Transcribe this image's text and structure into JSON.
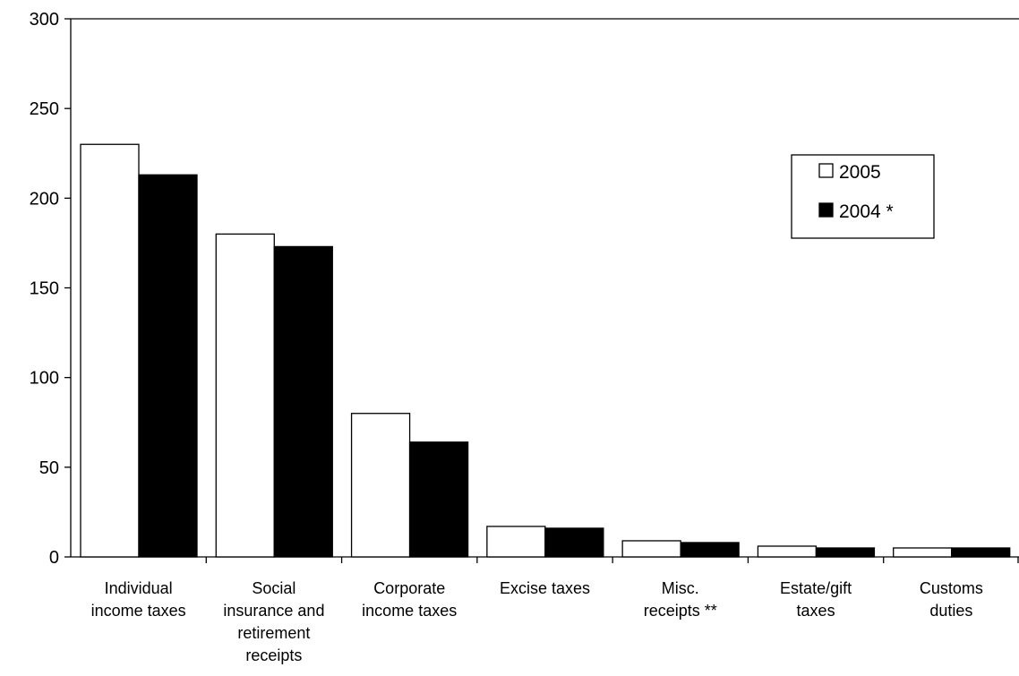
{
  "chart_data": {
    "type": "bar",
    "title": "",
    "xlabel": "",
    "ylabel": "",
    "ylim": [
      0,
      300
    ],
    "yticks": [
      0,
      50,
      100,
      150,
      200,
      250,
      300
    ],
    "grid": false,
    "legend_position": "right",
    "categories": [
      [
        "Individual",
        "income taxes"
      ],
      [
        "Social",
        "insurance and",
        "retirement",
        "receipts"
      ],
      [
        "Corporate",
        "income taxes"
      ],
      [
        "Excise taxes"
      ],
      [
        "Misc.",
        "receipts **"
      ],
      [
        "Estate/gift",
        "taxes"
      ],
      [
        "Customs",
        "duties"
      ]
    ],
    "series": [
      {
        "name": "2005",
        "color": "#ffffff",
        "values": [
          230,
          180,
          80,
          17,
          9,
          6,
          5
        ]
      },
      {
        "name": "2004 *",
        "color": "#000000",
        "values": [
          213,
          173,
          64,
          16,
          8,
          5,
          5
        ]
      }
    ]
  }
}
